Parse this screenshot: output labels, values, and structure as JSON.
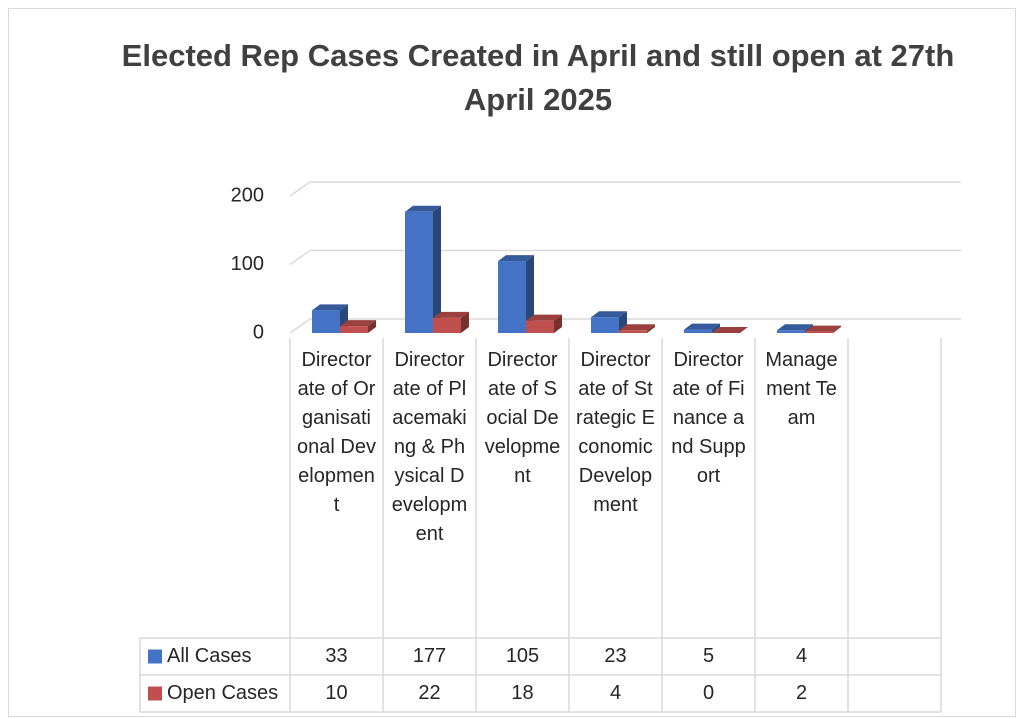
{
  "chart_data": {
    "type": "bar3d",
    "title": "Elected Rep Cases Created in April and still open at 27th April 2025",
    "categories": [
      "Directorate of Organisational Development",
      "Directorate of Placemaking & Physical Development",
      "Directorate of Social Development",
      "Directorate of Strategic Economic Development",
      "Directorate of Finance and Support",
      "Management Team",
      null
    ],
    "series": [
      {
        "name": "All Cases",
        "color": "#4472c4",
        "values": [
          33,
          177,
          105,
          23,
          5,
          4,
          null
        ]
      },
      {
        "name": "Open Cases",
        "color": "#c0504d",
        "values": [
          10,
          22,
          18,
          4,
          0,
          2,
          null
        ]
      }
    ],
    "ylim": [
      0,
      200
    ],
    "yticks": [
      0,
      100,
      200
    ],
    "grid": true,
    "legend": "data-table"
  }
}
